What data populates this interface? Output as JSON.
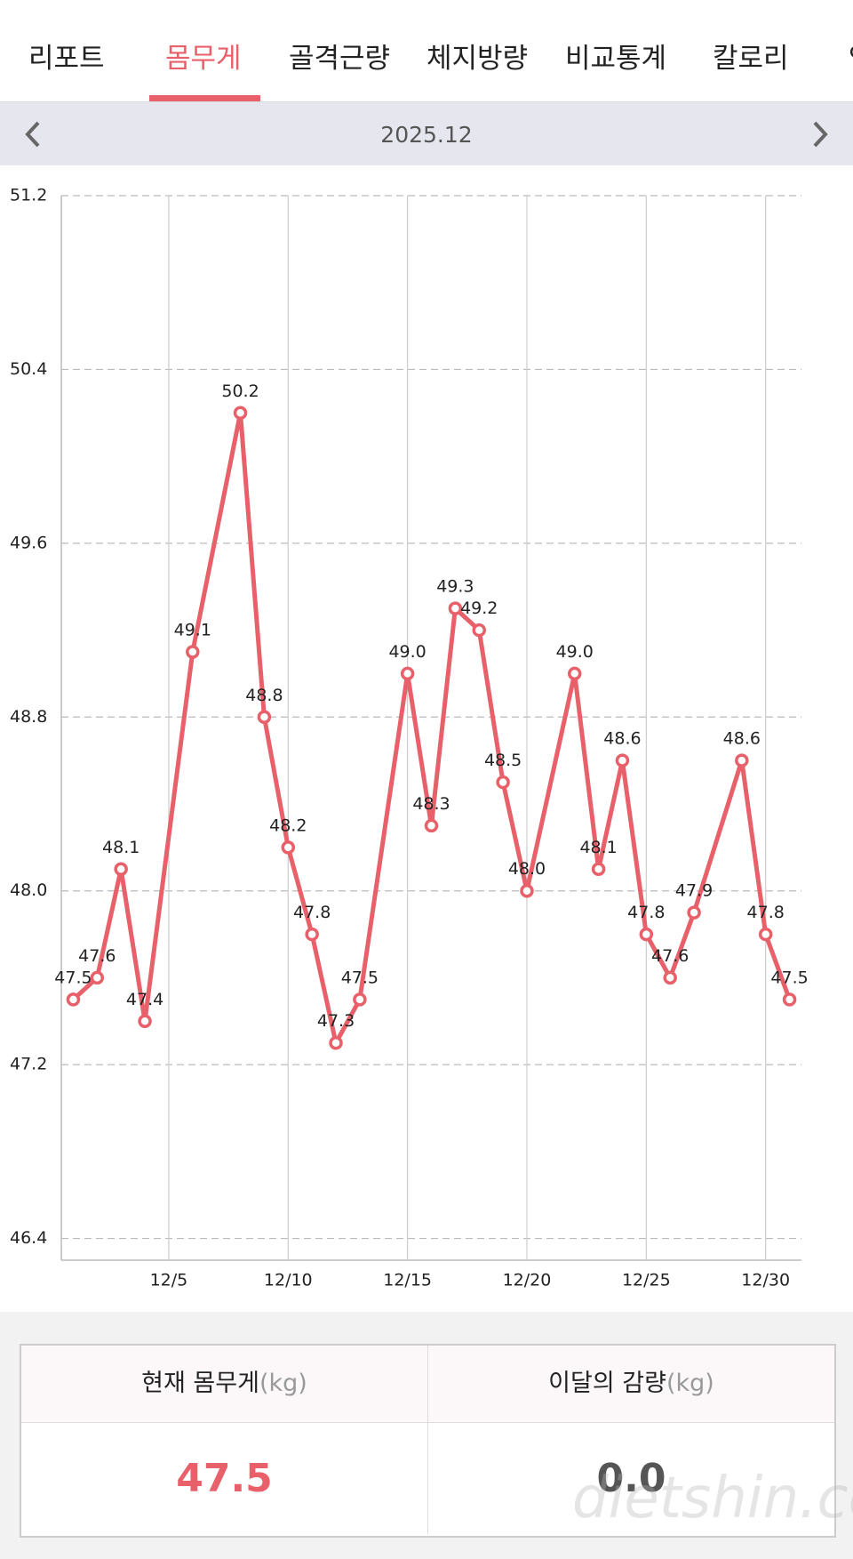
{
  "header": {
    "tabs": [
      "리포트",
      "몸무게",
      "골격근량",
      "체지방량",
      "비교통계",
      "칼로리",
      "영"
    ]
  },
  "nav": {
    "month": "2025.12"
  },
  "chart_data": {
    "type": "line",
    "x": [
      1,
      2,
      3,
      4,
      6,
      8,
      9,
      10,
      11,
      12,
      13,
      15,
      16,
      17,
      18,
      19,
      20,
      22,
      23,
      24,
      25,
      26,
      27,
      29,
      30,
      31
    ],
    "values": [
      47.5,
      47.6,
      48.1,
      47.4,
      49.1,
      50.2,
      48.8,
      48.2,
      47.8,
      47.3,
      47.5,
      49.0,
      48.3,
      49.3,
      49.2,
      48.5,
      48.0,
      49.0,
      48.1,
      48.6,
      47.8,
      47.6,
      47.9,
      48.6,
      47.8,
      47.5
    ],
    "value_labels": [
      "47.5",
      "47.6",
      "48.1",
      "47.4",
      "49.1",
      "50.2",
      "48.8",
      "48.2",
      "47.8",
      "47.3",
      "47.5",
      "49.0",
      "48.3",
      "49.3",
      "49.2",
      "48.5",
      "48.0",
      "49.0",
      "48.1",
      "48.6",
      "47.8",
      "47.6",
      "47.9",
      "48.6",
      "47.8",
      "47.5"
    ],
    "color": "#e8606a",
    "xlim": [
      0.5,
      31.5
    ],
    "xticks": [
      {
        "value": 5,
        "label": "12/5"
      },
      {
        "value": 10,
        "label": "12/10"
      },
      {
        "value": 15,
        "label": "12/15"
      },
      {
        "value": 20,
        "label": "12/20"
      },
      {
        "value": 25,
        "label": "12/25"
      },
      {
        "value": 30,
        "label": "12/30"
      }
    ],
    "ylim": [
      46.3,
      51.2
    ],
    "yticks": [
      46.4,
      47.2,
      {
        "value": 48,
        "label": "48.0"
      },
      48.8,
      49.6,
      50.4,
      51.2
    ],
    "grid": true
  },
  "summary": {
    "current_label": "현재 몸무게",
    "current_unit": "(kg)",
    "loss_label": "이달의 감량",
    "loss_unit": "(kg)",
    "current_value": "47.5",
    "loss_value": "0.0"
  },
  "watermark": "dietshin.com"
}
